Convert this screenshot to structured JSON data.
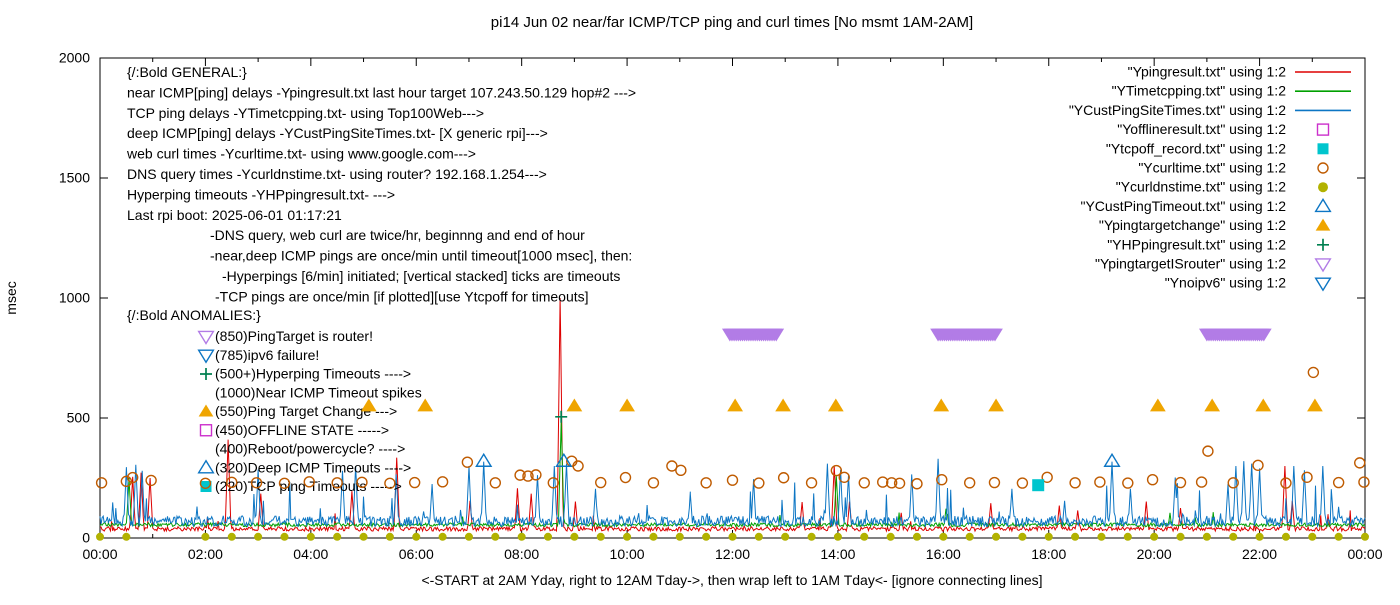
{
  "chart_data": {
    "type": "line",
    "title": "pi14 Jun 02  near/far ICMP/TCP ping and curl times [No msmt 1AM-2AM]",
    "xlabel": "<-START at 2AM Yday, right to 12AM Tday->, then wrap left to 1AM Tday<- [ignore connecting lines]",
    "ylabel": "msec",
    "xlim": [
      0,
      24
    ],
    "ylim": [
      0,
      2000
    ],
    "grid": false,
    "legend_position": "top-right",
    "x_ticks": [
      "00:00",
      "02:00",
      "04:00",
      "06:00",
      "08:00",
      "10:00",
      "12:00",
      "14:00",
      "16:00",
      "18:00",
      "20:00",
      "22:00",
      "00:00"
    ],
    "y_ticks": [
      0,
      500,
      1000,
      1500,
      2000
    ],
    "series": [
      {
        "id": "near-icmp",
        "label": "Ypingresult.txt",
        "type": "line",
        "color": "#dd0000",
        "baseline": 38,
        "noise": 9,
        "burst_p": 0.012,
        "burst_amp": 80,
        "spikes": [
          [
            0.62,
            255
          ],
          [
            0.78,
            272
          ],
          [
            0.95,
            250
          ],
          [
            2.43,
            410
          ],
          [
            3.05,
            185
          ],
          [
            4.78,
            195
          ],
          [
            5.63,
            335
          ],
          [
            7.02,
            155
          ],
          [
            7.92,
            205
          ],
          [
            8.18,
            185
          ],
          [
            8.73,
            1000
          ],
          [
            9.02,
            152
          ],
          [
            13.32,
            150
          ],
          [
            13.93,
            302
          ],
          [
            14.22,
            152
          ],
          [
            15.2,
            105
          ],
          [
            16.9,
            145
          ],
          [
            18.2,
            135
          ],
          [
            18.55,
            115
          ],
          [
            19.85,
            152
          ],
          [
            20.5,
            125
          ],
          [
            22.48,
            300
          ],
          [
            22.62,
            155
          ],
          [
            23.3,
            92
          ]
        ]
      },
      {
        "id": "tcp-ping",
        "label": "YTimetcpping.txt",
        "type": "line",
        "color": "#00a000",
        "baseline": 55,
        "noise": 8,
        "burst_p": 0.008,
        "burst_amp": 50,
        "spikes": [
          [
            0.55,
            250
          ],
          [
            8.75,
            490
          ],
          [
            13.97,
            258
          ],
          [
            16.05,
            122
          ],
          [
            20.3,
            105
          ]
        ]
      },
      {
        "id": "deep-icmp",
        "label": "YCustPingSiteTimes.txt",
        "type": "line",
        "color": "#0d76c4",
        "baseline": 70,
        "noise": 22,
        "burst_p": 0.04,
        "burst_amp": 160,
        "spikes": [
          [
            0.5,
            295
          ],
          [
            0.68,
            305
          ],
          [
            0.8,
            280
          ],
          [
            3.0,
            285
          ],
          [
            4.6,
            280
          ],
          [
            4.85,
            300
          ],
          [
            5.62,
            265
          ],
          [
            6.3,
            225
          ],
          [
            7.0,
            300
          ],
          [
            7.28,
            318
          ],
          [
            8.3,
            262
          ],
          [
            8.62,
            300
          ],
          [
            8.85,
            310
          ],
          [
            9.4,
            205
          ],
          [
            11.2,
            185
          ],
          [
            12.4,
            245
          ],
          [
            13.8,
            310
          ],
          [
            14.05,
            285
          ],
          [
            14.2,
            262
          ],
          [
            15.4,
            265
          ],
          [
            15.9,
            330
          ],
          [
            17.3,
            205
          ],
          [
            18.3,
            155
          ],
          [
            19.2,
            318
          ],
          [
            19.55,
            205
          ],
          [
            20.4,
            250
          ],
          [
            21.4,
            225
          ],
          [
            21.55,
            300
          ],
          [
            21.7,
            320
          ],
          [
            21.85,
            310
          ],
          [
            22.0,
            290
          ],
          [
            22.65,
            300
          ],
          [
            22.85,
            282
          ],
          [
            23.2,
            300
          ],
          [
            23.5,
            130
          ]
        ]
      },
      {
        "id": "curl-times",
        "label": "Ycurltime.txt",
        "type": "points",
        "marker": "circle-open",
        "color": "#bf5b00",
        "size": 5,
        "points": [
          [
            0.03,
            230
          ],
          [
            0.5,
            236
          ],
          [
            0.62,
            252
          ],
          [
            0.97,
            240
          ],
          [
            2.0,
            228
          ],
          [
            2.5,
            232
          ],
          [
            2.97,
            230
          ],
          [
            3.5,
            228
          ],
          [
            3.97,
            234
          ],
          [
            4.5,
            230
          ],
          [
            4.97,
            232
          ],
          [
            5.5,
            228
          ],
          [
            5.97,
            231
          ],
          [
            6.5,
            234
          ],
          [
            6.97,
            316
          ],
          [
            7.5,
            230
          ],
          [
            7.97,
            262
          ],
          [
            8.12,
            258
          ],
          [
            8.27,
            263
          ],
          [
            8.6,
            230
          ],
          [
            8.95,
            320
          ],
          [
            9.07,
            300
          ],
          [
            9.5,
            231
          ],
          [
            9.97,
            252
          ],
          [
            10.5,
            230
          ],
          [
            10.85,
            300
          ],
          [
            11.02,
            282
          ],
          [
            11.5,
            230
          ],
          [
            12.0,
            241
          ],
          [
            12.5,
            229
          ],
          [
            12.97,
            251
          ],
          [
            13.5,
            230
          ],
          [
            13.97,
            281
          ],
          [
            14.12,
            253
          ],
          [
            14.5,
            230
          ],
          [
            14.85,
            233
          ],
          [
            15.02,
            230
          ],
          [
            15.17,
            228
          ],
          [
            15.5,
            226
          ],
          [
            15.97,
            243
          ],
          [
            16.5,
            230
          ],
          [
            16.97,
            231
          ],
          [
            17.5,
            229
          ],
          [
            17.97,
            253
          ],
          [
            18.5,
            230
          ],
          [
            18.97,
            233
          ],
          [
            19.5,
            229
          ],
          [
            19.97,
            243
          ],
          [
            20.5,
            231
          ],
          [
            20.9,
            233
          ],
          [
            21.02,
            362
          ],
          [
            21.5,
            230
          ],
          [
            21.97,
            303
          ],
          [
            22.5,
            229
          ],
          [
            22.9,
            253
          ],
          [
            23.02,
            690
          ],
          [
            23.5,
            231
          ],
          [
            23.9,
            313
          ],
          [
            23.98,
            233
          ]
        ]
      },
      {
        "id": "dns-times",
        "label": "Ycurldnstime.txt",
        "type": "points-pattern",
        "marker": "circle-filled",
        "color": "#b2b200",
        "size": 4,
        "pattern": {
          "start": 0,
          "end": 24,
          "step": 0.5,
          "skip": [
            1,
            1.5
          ],
          "value": 5
        }
      },
      {
        "id": "deep-icmp-timeouts",
        "label": "YCustPingTimeout.txt",
        "type": "points",
        "marker": "triangle-up-open",
        "color": "#0d76c4",
        "size": 7,
        "points": [
          [
            7.28,
            320
          ],
          [
            8.8,
            320
          ],
          [
            19.2,
            320
          ]
        ]
      },
      {
        "id": "ping-target-change",
        "label": "Ypingtargetchange",
        "type": "points",
        "marker": "triangle-up-filled",
        "color": "#efa500",
        "size": 7.5,
        "points": [
          [
            5.1,
            550
          ],
          [
            6.17,
            550
          ],
          [
            9.0,
            550
          ],
          [
            10.0,
            550
          ],
          [
            12.05,
            550
          ],
          [
            12.96,
            550
          ],
          [
            13.96,
            550
          ],
          [
            15.96,
            550
          ],
          [
            17.0,
            550
          ],
          [
            20.07,
            550
          ],
          [
            21.1,
            550
          ],
          [
            22.07,
            550
          ],
          [
            23.05,
            550
          ]
        ]
      },
      {
        "id": "hyperping-timeouts",
        "label": "YHPpingresult.txt",
        "type": "points",
        "marker": "plus",
        "color": "#008050",
        "size": 6,
        "points": [
          [
            8.75,
            505
          ]
        ]
      },
      {
        "id": "tcp-timeouts",
        "label": "Ytcpoff_record.txt",
        "type": "points",
        "marker": "square-filled",
        "color": "#00c5cd",
        "size": 6,
        "points": [
          [
            17.8,
            220
          ]
        ]
      },
      {
        "id": "ping-target-is-router",
        "label": "YpingtargetISrouter",
        "type": "ranges",
        "marker": "triangle-down-filled",
        "color": "#b27ce6",
        "size": 7.5,
        "value": 850,
        "step": 0.04,
        "ranges": [
          [
            11.95,
            12.85
          ],
          [
            15.9,
            17.0
          ],
          [
            21.0,
            22.1
          ]
        ]
      }
    ],
    "legend": [
      {
        "label": "\"Ypingresult.txt\" using 1:2",
        "sample": "line",
        "color": "#dd0000"
      },
      {
        "label": "\"YTimetcpping.txt\" using 1:2",
        "sample": "line",
        "color": "#00a000"
      },
      {
        "label": "\"YCustPingSiteTimes.txt\" using 1:2",
        "sample": "line",
        "color": "#0d76c4"
      },
      {
        "label": "\"Yofflineresult.txt\" using 1:2",
        "sample": "square-open",
        "color": "#cc30cc"
      },
      {
        "label": "\"Ytcpoff_record.txt\" using 1:2",
        "sample": "square-filled",
        "color": "#00c5cd"
      },
      {
        "label": "\"Ycurltime.txt\" using 1:2",
        "sample": "circle-open",
        "color": "#bf5b00"
      },
      {
        "label": "\"Ycurldnstime.txt\" using 1:2",
        "sample": "circle-filled",
        "color": "#b2b200"
      },
      {
        "label": "\"YCustPingTimeout.txt\" using 1:2",
        "sample": "triangle-up-open",
        "color": "#0d76c4"
      },
      {
        "label": "\"Ypingtargetchange\" using 1:2",
        "sample": "triangle-up-filled",
        "color": "#efa500"
      },
      {
        "label": "\"YHPpingresult.txt\" using 1:2",
        "sample": "plus",
        "color": "#008050"
      },
      {
        "label": "\"YpingtargetISrouter\" using 1:2",
        "sample": "triangle-down-open",
        "color": "#b27ce6"
      },
      {
        "label": "\"Ynoipv6\" using 1:2",
        "sample": "triangle-down-open",
        "color": "#0d76c4"
      }
    ],
    "annotations": {
      "general": [
        {
          "text": "{/:Bold GENERAL:}",
          "indent": 0
        },
        {
          "text": "near ICMP[ping] delays -Ypingresult.txt last hour target 107.243.50.129 hop#2 --->",
          "indent": 0
        },
        {
          "text": "TCP ping delays -YTimetcpping.txt- using Top100Web--->",
          "indent": 0
        },
        {
          "text": "deep ICMP[ping] delays -YCustPingSiteTimes.txt- [X generic rpi]--->",
          "indent": 0
        },
        {
          "text": "web curl times -Ycurltime.txt- using www.google.com--->",
          "indent": 0
        },
        {
          "text": "DNS query times -Ycurldnstime.txt- using router? 192.168.1.254--->",
          "indent": 0
        },
        {
          "text": "Hyperping timeouts -YHPpingresult.txt- --->",
          "indent": 0
        },
        {
          "text": "Last rpi boot: 2025-06-01 01:17:21",
          "indent": 0
        },
        {
          "text": "-DNS query, web curl are twice/hr, beginnng and end of hour",
          "indent": 83
        },
        {
          "text": "-near,deep ICMP pings are once/min until timeout[1000 msec], then:",
          "indent": 83
        },
        {
          "text": "-Hyperpings [6/min] initiated; [vertical stacked] ticks are timeouts",
          "indent": 95
        },
        {
          "text": "-TCP pings are once/min [if plotted][use Ytcpoff for timeouts]",
          "indent": 88
        }
      ],
      "anomalies_header": "{/:Bold ANOMALIES:}",
      "anomalies": [
        {
          "marker": "triangle-down-open",
          "color": "#b27ce6",
          "text": "(850)PingTarget is router!"
        },
        {
          "marker": "triangle-down-open",
          "color": "#0d76c4",
          "text": "(785)ipv6 failure!"
        },
        {
          "marker": "plus",
          "color": "#008050",
          "text": "(500+)Hyperping Timeouts ---->"
        },
        {
          "marker": null,
          "color": null,
          "text": "(1000)Near ICMP Timeout spikes"
        },
        {
          "marker": "triangle-up-filled",
          "color": "#efa500",
          "text": "(550)Ping Target Change --->"
        },
        {
          "marker": "square-open",
          "color": "#cc30cc",
          "text": "(450)OFFLINE STATE ----->"
        },
        {
          "marker": null,
          "color": null,
          "text": "(400)Reboot/powercycle? ---->"
        },
        {
          "marker": "triangle-up-open",
          "color": "#0d76c4",
          "text": "(320)Deep ICMP Timeouts ---->"
        },
        {
          "marker": "square-filled",
          "color": "#00c5cd",
          "text": "(220)TCP ping Timeouts ----->"
        }
      ]
    }
  }
}
